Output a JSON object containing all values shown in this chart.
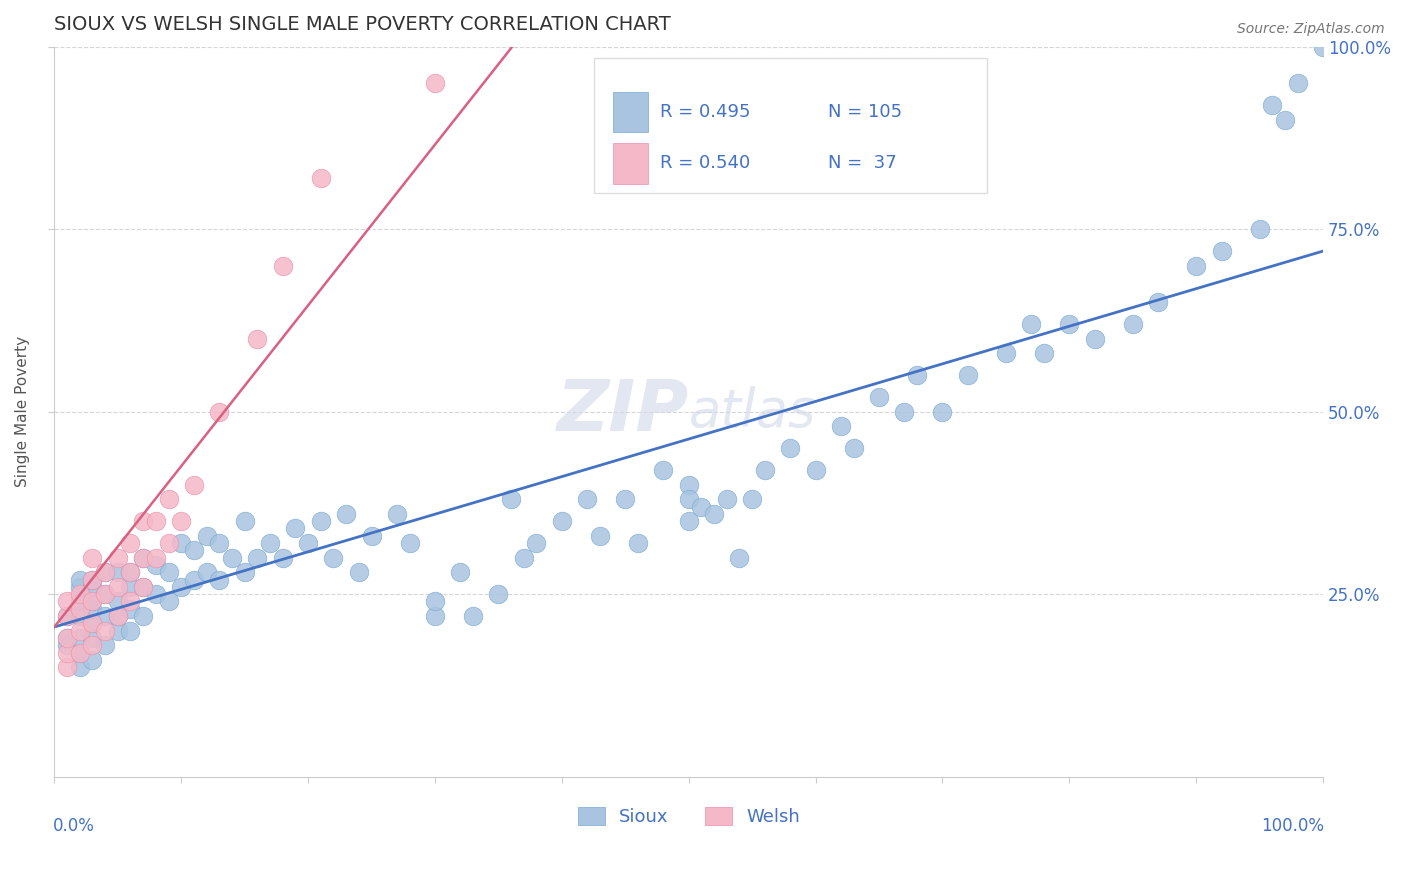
{
  "title": "SIOUX VS WELSH SINGLE MALE POVERTY CORRELATION CHART",
  "source": "Source: ZipAtlas.com",
  "ylabel": "Single Male Poverty",
  "watermark": "ZIPatlas",
  "sioux_color": "#a8c4e0",
  "sioux_edge_color": "#7aaad0",
  "welsh_color": "#f5b8c8",
  "welsh_edge_color": "#e890aa",
  "sioux_line_color": "#4472c4",
  "welsh_line_color": "#d96080",
  "title_color": "#404040",
  "text_color": "#4472c4",
  "grid_color": "#cccccc",
  "background_color": "#ffffff",
  "legend_r_sioux": "R = 0.495",
  "legend_n_sioux": "N = 105",
  "legend_r_welsh": "R = 0.540",
  "legend_n_welsh": "N =  37",
  "sioux_x": [
    0.01,
    0.01,
    0.01,
    0.02,
    0.02,
    0.02,
    0.02,
    0.02,
    0.02,
    0.02,
    0.03,
    0.03,
    0.03,
    0.03,
    0.03,
    0.03,
    0.03,
    0.04,
    0.04,
    0.04,
    0.04,
    0.05,
    0.05,
    0.05,
    0.05,
    0.06,
    0.06,
    0.06,
    0.06,
    0.07,
    0.07,
    0.07,
    0.08,
    0.08,
    0.09,
    0.09,
    0.1,
    0.1,
    0.11,
    0.11,
    0.12,
    0.12,
    0.13,
    0.13,
    0.14,
    0.15,
    0.15,
    0.16,
    0.17,
    0.18,
    0.19,
    0.2,
    0.21,
    0.22,
    0.23,
    0.24,
    0.25,
    0.27,
    0.28,
    0.3,
    0.3,
    0.32,
    0.33,
    0.35,
    0.36,
    0.37,
    0.38,
    0.4,
    0.42,
    0.43,
    0.45,
    0.46,
    0.48,
    0.5,
    0.5,
    0.5,
    0.51,
    0.52,
    0.53,
    0.54,
    0.55,
    0.56,
    0.58,
    0.6,
    0.62,
    0.63,
    0.65,
    0.67,
    0.68,
    0.7,
    0.72,
    0.75,
    0.77,
    0.78,
    0.8,
    0.82,
    0.85,
    0.87,
    0.9,
    0.92,
    0.95,
    0.96,
    0.97,
    0.98,
    1.0
  ],
  "sioux_y": [
    0.18,
    0.19,
    0.22,
    0.15,
    0.17,
    0.19,
    0.22,
    0.24,
    0.26,
    0.27,
    0.16,
    0.19,
    0.21,
    0.23,
    0.24,
    0.26,
    0.27,
    0.18,
    0.22,
    0.25,
    0.28,
    0.2,
    0.22,
    0.24,
    0.28,
    0.2,
    0.23,
    0.26,
    0.28,
    0.22,
    0.26,
    0.3,
    0.25,
    0.29,
    0.24,
    0.28,
    0.26,
    0.32,
    0.27,
    0.31,
    0.28,
    0.33,
    0.27,
    0.32,
    0.3,
    0.28,
    0.35,
    0.3,
    0.32,
    0.3,
    0.34,
    0.32,
    0.35,
    0.3,
    0.36,
    0.28,
    0.33,
    0.36,
    0.32,
    0.22,
    0.24,
    0.28,
    0.22,
    0.25,
    0.38,
    0.3,
    0.32,
    0.35,
    0.38,
    0.33,
    0.38,
    0.32,
    0.42,
    0.35,
    0.4,
    0.38,
    0.37,
    0.36,
    0.38,
    0.3,
    0.38,
    0.42,
    0.45,
    0.42,
    0.48,
    0.45,
    0.52,
    0.5,
    0.55,
    0.5,
    0.55,
    0.58,
    0.62,
    0.58,
    0.62,
    0.6,
    0.62,
    0.65,
    0.7,
    0.72,
    0.75,
    0.92,
    0.9,
    0.95,
    1.0
  ],
  "welsh_x": [
    0.01,
    0.01,
    0.01,
    0.01,
    0.01,
    0.02,
    0.02,
    0.02,
    0.02,
    0.03,
    0.03,
    0.03,
    0.03,
    0.03,
    0.04,
    0.04,
    0.04,
    0.05,
    0.05,
    0.05,
    0.06,
    0.06,
    0.06,
    0.07,
    0.07,
    0.07,
    0.08,
    0.08,
    0.09,
    0.09,
    0.1,
    0.11,
    0.13,
    0.16,
    0.18,
    0.21,
    0.3
  ],
  "welsh_y": [
    0.15,
    0.17,
    0.19,
    0.22,
    0.24,
    0.17,
    0.2,
    0.23,
    0.25,
    0.18,
    0.21,
    0.24,
    0.27,
    0.3,
    0.2,
    0.25,
    0.28,
    0.22,
    0.26,
    0.3,
    0.24,
    0.28,
    0.32,
    0.26,
    0.3,
    0.35,
    0.3,
    0.35,
    0.32,
    0.38,
    0.35,
    0.4,
    0.5,
    0.6,
    0.7,
    0.82,
    0.95
  ],
  "sioux_line_x": [
    0.0,
    1.0
  ],
  "sioux_line_y": [
    0.205,
    0.72
  ],
  "welsh_line_x": [
    0.0,
    0.37
  ],
  "welsh_line_y": [
    0.205,
    1.02
  ],
  "xlim": [
    0.0,
    1.0
  ],
  "ylim": [
    0.0,
    1.0
  ],
  "yticks": [
    0.25,
    0.5,
    0.75,
    1.0
  ],
  "ytick_labels": [
    "25.0%",
    "50.0%",
    "75.0%",
    "100.0%"
  ]
}
